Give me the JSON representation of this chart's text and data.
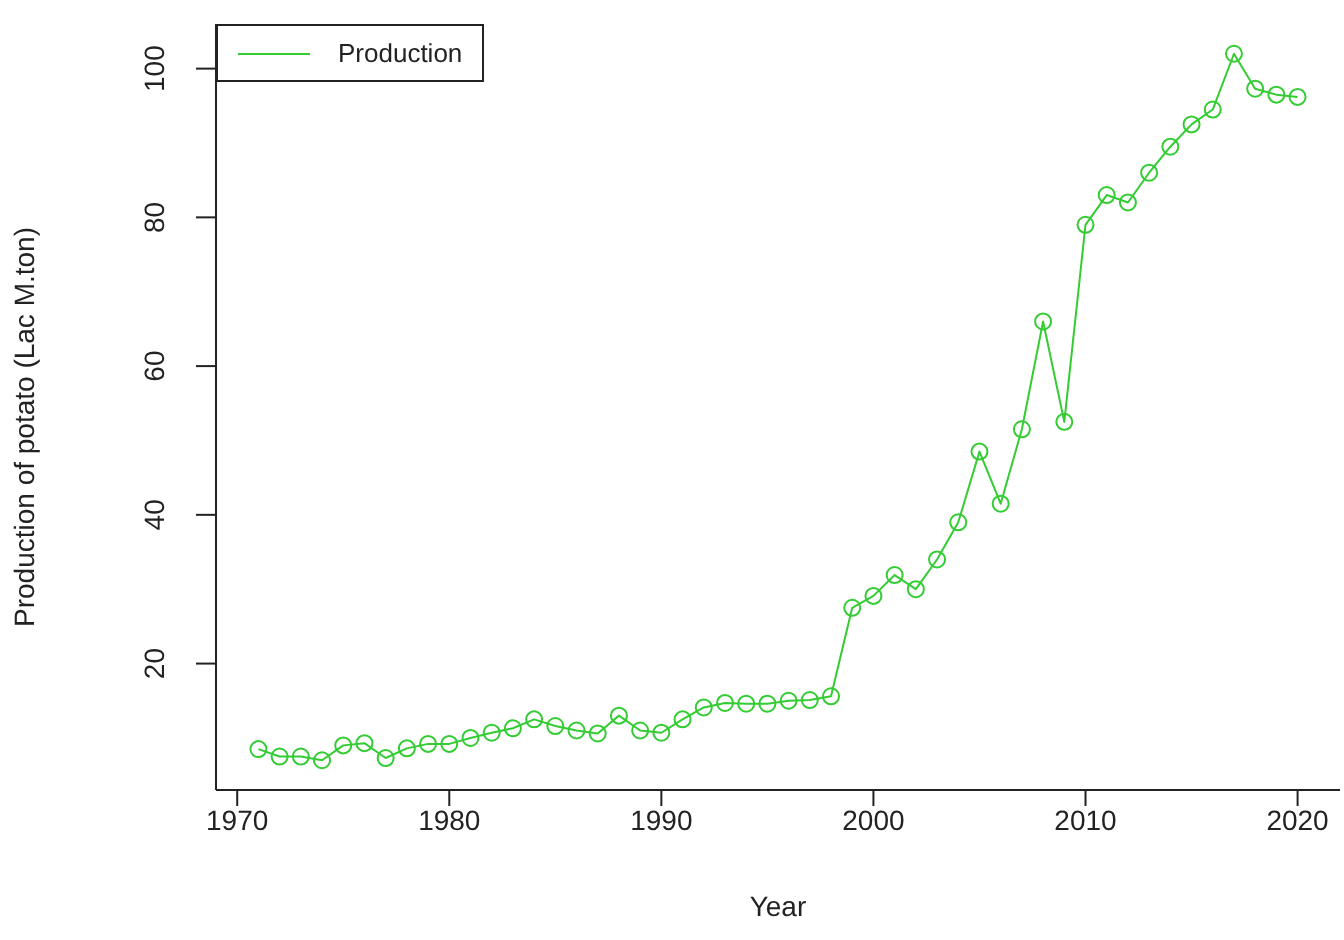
{
  "chart_data": {
    "type": "line",
    "xlabel": "Year",
    "ylabel": "Production of potato (Lac M.ton)",
    "x": [
      1971,
      1972,
      1973,
      1974,
      1975,
      1976,
      1977,
      1978,
      1979,
      1980,
      1981,
      1982,
      1983,
      1984,
      1985,
      1986,
      1987,
      1988,
      1989,
      1990,
      1991,
      1992,
      1993,
      1994,
      1995,
      1996,
      1997,
      1998,
      1999,
      2000,
      2001,
      2002,
      2003,
      2004,
      2005,
      2006,
      2007,
      2008,
      2009,
      2010,
      2011,
      2012,
      2013,
      2014,
      2015,
      2016,
      2017,
      2018,
      2019,
      2020
    ],
    "series": [
      {
        "name": "Production",
        "color": "#33cc33",
        "values": [
          8.5,
          7.5,
          7.5,
          7,
          9,
          9.3,
          7.3,
          8.6,
          9.2,
          9.2,
          10,
          10.7,
          11.3,
          12.5,
          11.6,
          11,
          10.6,
          13,
          11,
          10.7,
          12.5,
          14.1,
          14.7,
          14.6,
          14.6,
          15,
          15.1,
          15.6,
          27.5,
          29.1,
          31.9,
          30,
          34,
          39,
          48.5,
          41.5,
          51.5,
          66,
          52.5,
          79,
          83,
          82,
          86,
          89.5,
          92.5,
          94.5,
          102,
          97.3,
          96.5,
          96.2
        ]
      }
    ],
    "xlim": [
      1969,
      2022
    ],
    "xticks": [
      1970,
      1980,
      1990,
      2000,
      2010,
      2020
    ],
    "ylim": [
      3,
      106
    ],
    "yticks": [
      20,
      40,
      60,
      80,
      100
    ],
    "legend": "top left",
    "marker": "circle",
    "line_style": "solid",
    "grid": false
  }
}
